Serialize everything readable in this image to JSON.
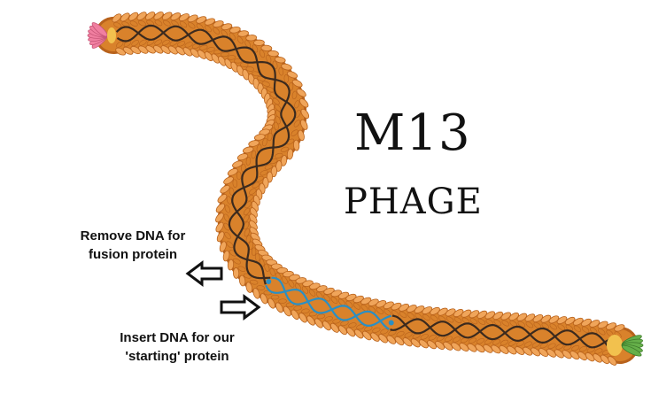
{
  "title": {
    "line1": "M13",
    "line2": "PHAGE"
  },
  "labels": {
    "remove": {
      "line1": "Remove DNA for",
      "line2": "fusion protein"
    },
    "insert": {
      "line1": "Insert DNA for our",
      "line2": "'starting' protein"
    }
  },
  "colors": {
    "capsid": "#d9822b",
    "capsid_dark": "#b8621c",
    "capsid_light": "#f0a55a",
    "dna": "#3b2a1e",
    "inserted_dna": "#2a8fc4",
    "end_cap_left": "#f07fa0",
    "end_cap_right": "#66b04a",
    "end_yellow": "#f2c14e",
    "arrow_outline": "#111111"
  },
  "icons": {
    "left_arrow": "outlined-left-arrow",
    "right_arrow": "outlined-right-arrow"
  }
}
